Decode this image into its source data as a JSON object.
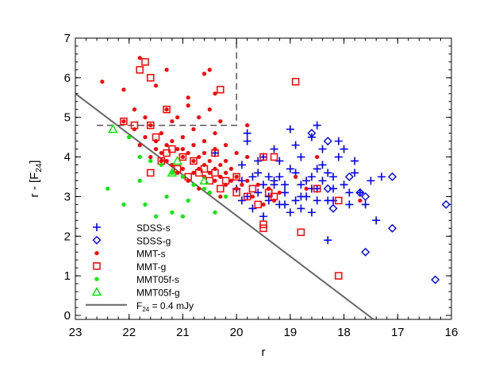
{
  "chart_data": {
    "type": "scatter",
    "xlabel": "r",
    "ylabel_main": "r - [F",
    "ylabel_sub": "24",
    "ylabel_end": "]",
    "xlim": [
      23,
      16
    ],
    "ylim": [
      -0.1,
      7
    ],
    "x_ticks": [
      23,
      22,
      21,
      20,
      19,
      18,
      17,
      16
    ],
    "y_ticks": [
      0,
      1,
      2,
      3,
      4,
      5,
      6,
      7
    ],
    "reference_lines": {
      "flux_limit": {
        "label_main": "F",
        "label_sub": "24",
        "label_end": " = 0.4 mJy",
        "x": [
          23,
          17.45
        ],
        "y": [
          5.6,
          -0.1
        ],
        "color": "#666666"
      },
      "selection_box": {
        "x": [
          22.6,
          20.0,
          20.0
        ],
        "y": [
          4.8,
          4.8,
          7.0
        ],
        "color": "#555555"
      }
    },
    "series": [
      {
        "name": "SDSS-s",
        "marker": "plus",
        "color": "#0000ff",
        "points": [
          [
            20.4,
            4.1
          ],
          [
            19.9,
            3.8
          ],
          [
            19.8,
            4.4
          ],
          [
            19.6,
            3.6
          ],
          [
            19.5,
            4.0
          ],
          [
            19.4,
            3.5
          ],
          [
            19.3,
            3.3
          ],
          [
            19.2,
            3.9
          ],
          [
            19.1,
            3.1
          ],
          [
            19.0,
            3.7
          ],
          [
            18.9,
            4.3
          ],
          [
            18.8,
            3.0
          ],
          [
            18.7,
            3.4
          ],
          [
            18.6,
            4.5
          ],
          [
            18.5,
            3.2
          ],
          [
            18.4,
            3.8
          ],
          [
            18.3,
            2.9
          ],
          [
            18.2,
            3.5
          ],
          [
            18.1,
            4.0
          ],
          [
            18.0,
            3.3
          ],
          [
            17.9,
            2.8
          ],
          [
            17.8,
            3.6
          ],
          [
            17.7,
            3.1
          ],
          [
            17.5,
            3.4
          ],
          [
            17.4,
            2.4
          ],
          [
            17.3,
            3.5
          ],
          [
            18.3,
            1.9
          ],
          [
            19.5,
            2.5
          ],
          [
            19.7,
            2.7
          ],
          [
            19.8,
            3.0
          ],
          [
            19.9,
            3.4
          ],
          [
            20.0,
            3.2
          ],
          [
            19.6,
            3.9
          ],
          [
            19.3,
            4.2
          ],
          [
            19.1,
            3.3
          ],
          [
            18.9,
            3.6
          ],
          [
            18.8,
            4.0
          ],
          [
            18.6,
            3.2
          ],
          [
            18.5,
            3.7
          ],
          [
            18.4,
            4.2
          ],
          [
            18.8,
            2.7
          ],
          [
            19.0,
            2.6
          ],
          [
            19.2,
            2.8
          ],
          [
            19.4,
            2.9
          ],
          [
            19.6,
            3.1
          ],
          [
            18.7,
            3.0
          ],
          [
            18.6,
            2.6
          ],
          [
            18.4,
            3.4
          ],
          [
            18.2,
            2.9
          ],
          [
            18.0,
            4.2
          ],
          [
            17.8,
            3.9
          ],
          [
            17.6,
            2.8
          ],
          [
            17.9,
            3.1
          ],
          [
            18.3,
            3.6
          ],
          [
            18.5,
            2.9
          ],
          [
            18.9,
            2.9
          ],
          [
            19.1,
            2.8
          ],
          [
            19.3,
            3.4
          ],
          [
            19.5,
            3.3
          ],
          [
            19.7,
            3.5
          ],
          [
            19.9,
            2.9
          ],
          [
            19.8,
            4.6
          ],
          [
            19.0,
            4.7
          ],
          [
            18.5,
            4.8
          ],
          [
            18.1,
            4.4
          ],
          [
            19.4,
            3.0
          ],
          [
            18.6,
            3.5
          ],
          [
            18.2,
            3.2
          ],
          [
            19.2,
            3.5
          ],
          [
            18.8,
            3.3
          ]
        ]
      },
      {
        "name": "SDSS-g",
        "marker": "diamond",
        "color": "#0000ff",
        "points": [
          [
            18.6,
            4.6
          ],
          [
            18.3,
            4.4
          ],
          [
            17.7,
            3.1
          ],
          [
            17.1,
            3.5
          ],
          [
            17.1,
            2.2
          ],
          [
            17.6,
            1.6
          ],
          [
            16.3,
            0.9
          ],
          [
            16.1,
            2.8
          ],
          [
            18.3,
            3.2
          ],
          [
            18.2,
            2.7
          ],
          [
            17.9,
            3.5
          ],
          [
            17.6,
            3.0
          ]
        ]
      },
      {
        "name": "MMT-s",
        "marker": "dot",
        "color": "#ff0000",
        "points": [
          [
            22.5,
            5.9
          ],
          [
            22.1,
            5.7
          ],
          [
            21.8,
            6.5
          ],
          [
            21.5,
            5.8
          ],
          [
            21.3,
            6.2
          ],
          [
            20.9,
            5.5
          ],
          [
            20.6,
            6.1
          ],
          [
            20.5,
            6.2
          ],
          [
            20.4,
            5.6
          ],
          [
            22.1,
            4.9
          ],
          [
            21.9,
            4.7
          ],
          [
            21.7,
            4.5
          ],
          [
            21.5,
            4.4
          ],
          [
            21.3,
            4.3
          ],
          [
            21.1,
            4.2
          ],
          [
            20.9,
            4.1
          ],
          [
            20.7,
            4.0
          ],
          [
            20.5,
            3.9
          ],
          [
            20.3,
            3.8
          ],
          [
            20.1,
            3.7
          ],
          [
            21.8,
            4.3
          ],
          [
            21.6,
            4.0
          ],
          [
            21.4,
            3.9
          ],
          [
            21.2,
            3.8
          ],
          [
            21.0,
            3.7
          ],
          [
            20.8,
            3.6
          ],
          [
            20.6,
            3.5
          ],
          [
            20.4,
            3.4
          ],
          [
            20.2,
            3.3
          ],
          [
            20.0,
            3.2
          ],
          [
            21.6,
            4.8
          ],
          [
            21.4,
            4.6
          ],
          [
            21.2,
            4.9
          ],
          [
            21.0,
            4.5
          ],
          [
            20.8,
            4.7
          ],
          [
            20.6,
            4.4
          ],
          [
            20.4,
            4.6
          ],
          [
            20.2,
            4.3
          ],
          [
            20.0,
            4.1
          ],
          [
            19.8,
            4.0
          ],
          [
            21.9,
            5.2
          ],
          [
            21.7,
            5.0
          ],
          [
            21.3,
            5.2
          ],
          [
            21.1,
            5.0
          ],
          [
            20.9,
            5.3
          ],
          [
            20.7,
            5.0
          ],
          [
            20.5,
            5.2
          ],
          [
            20.3,
            4.9
          ],
          [
            21.5,
            4.2
          ],
          [
            21.1,
            3.6
          ],
          [
            20.9,
            3.4
          ],
          [
            20.7,
            3.2
          ],
          [
            20.5,
            3.1
          ],
          [
            20.3,
            3.0
          ],
          [
            21.0,
            4.0
          ],
          [
            20.8,
            3.9
          ],
          [
            20.6,
            3.8
          ],
          [
            20.4,
            3.7
          ],
          [
            20.2,
            3.6
          ],
          [
            20.0,
            3.5
          ],
          [
            19.8,
            3.4
          ],
          [
            19.6,
            3.3
          ],
          [
            19.4,
            3.2
          ],
          [
            19.2,
            3.1
          ],
          [
            19.8,
            4.8
          ],
          [
            19.7,
            3.0
          ],
          [
            19.5,
            2.8
          ],
          [
            19.3,
            2.9
          ],
          [
            18.9,
            3.5
          ],
          [
            18.7,
            3.2
          ],
          [
            17.7,
            2.9
          ],
          [
            18.5,
            4.0
          ],
          [
            21.2,
            4.4
          ],
          [
            21.4,
            4.1
          ],
          [
            20.6,
            4.1
          ],
          [
            20.4,
            4.2
          ],
          [
            20.2,
            3.9
          ],
          [
            20.8,
            4.3
          ],
          [
            21.0,
            4.2
          ],
          [
            20.3,
            3.5
          ],
          [
            20.1,
            3.4
          ],
          [
            19.9,
            3.3
          ],
          [
            20.5,
            3.6
          ],
          [
            20.7,
            3.7
          ],
          [
            21.3,
            3.9
          ]
        ]
      },
      {
        "name": "MMT-g",
        "marker": "square",
        "color": "#ff0000",
        "points": [
          [
            21.7,
            6.4
          ],
          [
            21.8,
            6.2
          ],
          [
            21.6,
            6.0
          ],
          [
            20.3,
            5.7
          ],
          [
            18.9,
            5.9
          ],
          [
            21.3,
            5.2
          ],
          [
            22.1,
            4.9
          ],
          [
            21.9,
            4.8
          ],
          [
            21.6,
            4.8
          ],
          [
            21.5,
            4.5
          ],
          [
            21.2,
            4.2
          ],
          [
            21.0,
            4.0
          ],
          [
            20.8,
            3.9
          ],
          [
            20.6,
            3.7
          ],
          [
            20.4,
            3.6
          ],
          [
            20.2,
            3.4
          ],
          [
            20.0,
            3.5
          ],
          [
            19.8,
            3.0
          ],
          [
            19.7,
            3.2
          ],
          [
            19.6,
            2.8
          ],
          [
            19.5,
            2.3
          ],
          [
            19.5,
            2.2
          ],
          [
            19.4,
            3.1
          ],
          [
            19.5,
            4.0
          ],
          [
            19.3,
            4.0
          ],
          [
            18.8,
            2.1
          ],
          [
            18.5,
            3.2
          ],
          [
            18.1,
            2.9
          ],
          [
            18.1,
            1.0
          ],
          [
            19.3,
            3.0
          ],
          [
            21.4,
            3.9
          ],
          [
            20.9,
            3.5
          ],
          [
            20.7,
            3.6
          ],
          [
            20.5,
            3.4
          ],
          [
            20.3,
            3.2
          ],
          [
            21.6,
            3.6
          ],
          [
            21.3,
            4.1
          ],
          [
            21.1,
            3.7
          ],
          [
            20.4,
            4.1
          ],
          [
            20.0,
            3.1
          ]
        ]
      },
      {
        "name": "MMT05f-s",
        "marker": "dot",
        "color": "#00ee00",
        "points": [
          [
            22.4,
            3.2
          ],
          [
            22.0,
            4.5
          ],
          [
            21.8,
            4.0
          ],
          [
            21.6,
            3.9
          ],
          [
            21.4,
            3.8
          ],
          [
            21.2,
            3.6
          ],
          [
            21.0,
            3.5
          ],
          [
            20.8,
            3.3
          ],
          [
            20.5,
            3.1
          ],
          [
            20.2,
            3.0
          ],
          [
            21.7,
            2.8
          ],
          [
            21.5,
            2.5
          ],
          [
            21.3,
            3.0
          ],
          [
            21.2,
            2.6
          ],
          [
            21.0,
            2.5
          ],
          [
            20.9,
            2.9
          ],
          [
            20.6,
            3.2
          ],
          [
            20.4,
            2.6
          ],
          [
            21.8,
            3.4
          ],
          [
            22.1,
            2.8
          ]
        ]
      },
      {
        "name": "MMT05f-g",
        "marker": "triangle",
        "color": "#00ee00",
        "points": [
          [
            22.3,
            4.7
          ],
          [
            21.2,
            3.6
          ],
          [
            21.1,
            3.9
          ],
          [
            20.6,
            3.4
          ]
        ]
      }
    ]
  }
}
